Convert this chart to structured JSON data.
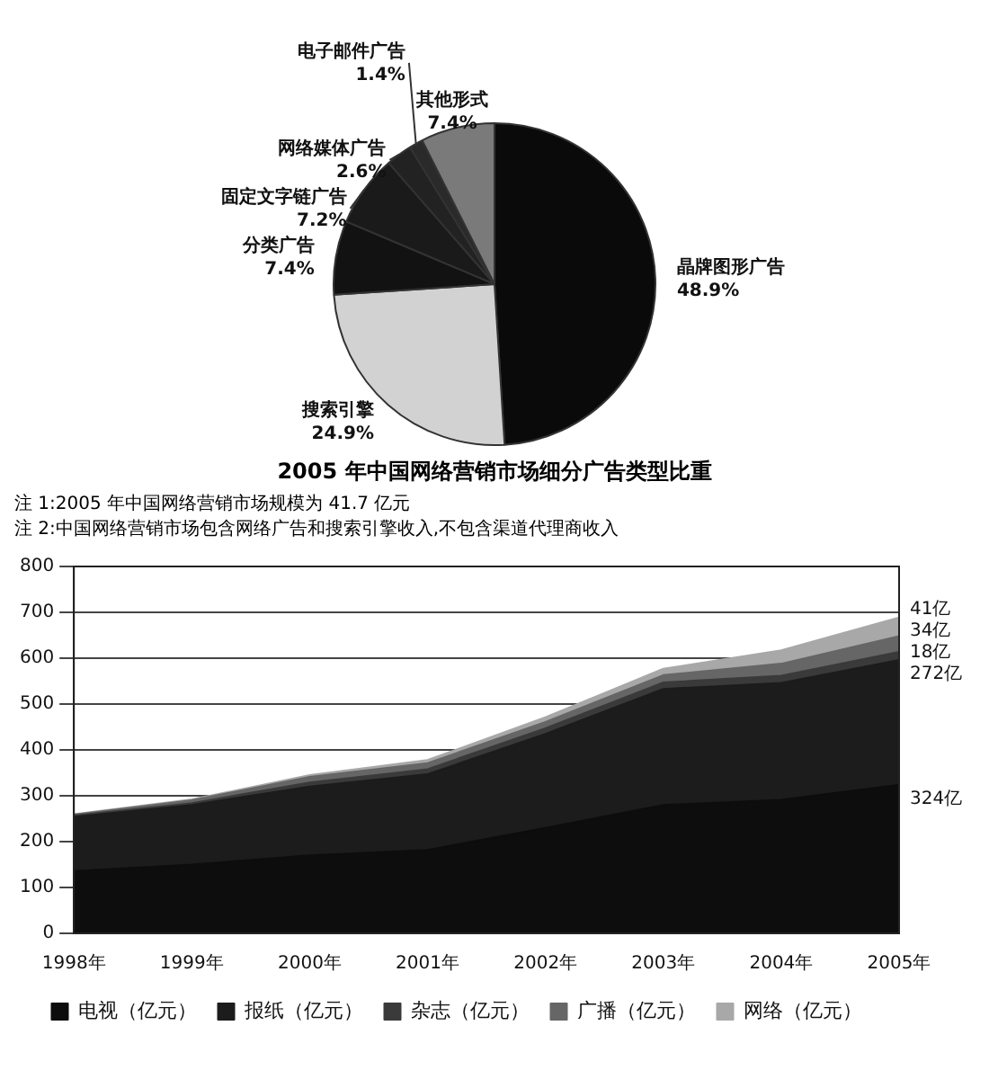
{
  "chart_data": [
    {
      "type": "pie",
      "title": "2005 年中国网络营销市场细分广告类型比重",
      "annotations": [
        "注 1:2005 年中国网络营销市场规模为 41.7 亿元",
        "注 2:中国网络营销市场包含网络广告和搜索引擎收入,不包含渠道代理商收入"
      ],
      "categories": [
        "晶牌图形广告",
        "搜索引擎",
        "分类广告",
        "固定文字链广告",
        "网络媒体广告",
        "电子邮件广告",
        "其他形式"
      ],
      "values": [
        48.9,
        24.9,
        7.4,
        7.2,
        2.6,
        1.4,
        7.4
      ],
      "value_labels": [
        "48.9%",
        "24.9%",
        "7.4%",
        "7.2%",
        "2.6%",
        "1.4%",
        "7.4%"
      ],
      "colors": [
        "#0a0a0a",
        "#d2d2d2",
        "#121212",
        "#1a1a1a",
        "#222222",
        "#2a2a2a",
        "#7a7a7a"
      ],
      "legend": false
    },
    {
      "type": "area",
      "stacked": true,
      "categories": [
        "1998年",
        "1999年",
        "2000年",
        "2001年",
        "2002年",
        "2003年",
        "2004年",
        "2005年"
      ],
      "series": [
        {
          "name": "电视（亿元）",
          "color": "#0d0d0d",
          "values": [
            136,
            150,
            170,
            182,
            230,
            280,
            291,
            324
          ],
          "value_labels": [
            null,
            null,
            null,
            null,
            null,
            null,
            null,
            "324亿"
          ]
        },
        {
          "name": "报纸（亿元）",
          "color": "#1c1c1c",
          "values": [
            118,
            130,
            150,
            165,
            205,
            253,
            255,
            272
          ],
          "value_labels": [
            null,
            null,
            null,
            null,
            null,
            null,
            null,
            "272亿"
          ]
        },
        {
          "name": "杂志（亿元）",
          "color": "#3a3a3a",
          "values": [
            3,
            4,
            9,
            11,
            12,
            14,
            16,
            18
          ],
          "value_labels": [
            null,
            null,
            null,
            null,
            null,
            null,
            null,
            "18亿"
          ]
        },
        {
          "name": "广播（亿元）",
          "color": "#666666",
          "values": [
            2,
            6,
            12,
            13,
            14,
            16,
            26,
            34
          ],
          "value_labels": [
            null,
            null,
            null,
            null,
            null,
            null,
            null,
            "34亿"
          ]
        },
        {
          "name": "网络（亿元）",
          "color": "#a8a8a8",
          "values": [
            1,
            2,
            4,
            7,
            10,
            14,
            29,
            41
          ],
          "value_labels": [
            null,
            null,
            null,
            null,
            null,
            null,
            null,
            "41亿"
          ]
        }
      ],
      "ylim": [
        0,
        800
      ],
      "yticks": [
        0,
        100,
        200,
        300,
        400,
        500,
        600,
        700,
        800
      ],
      "grid": "y",
      "marker": "none",
      "legend": "bottom"
    }
  ]
}
